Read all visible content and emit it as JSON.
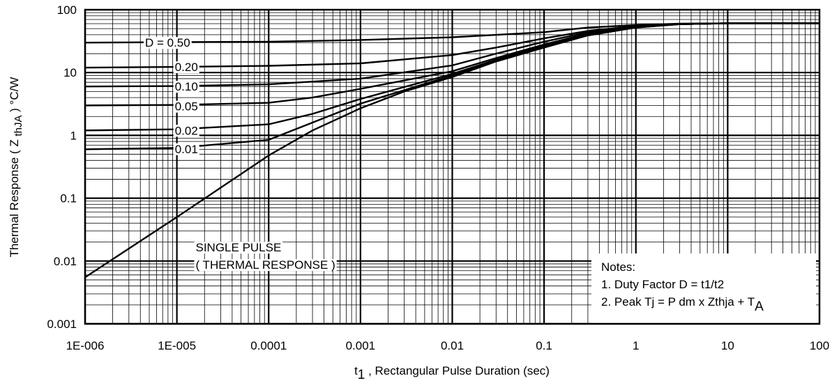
{
  "chart_data": {
    "type": "line",
    "xscale": "log",
    "yscale": "log",
    "xlim": [
      1e-06,
      100
    ],
    "ylim": [
      0.001,
      100
    ],
    "grid": true,
    "xlabel_main": "t",
    "xlabel_sub": "1",
    "xlabel_rest": " , Rectangular Pulse Duration (sec)",
    "ylabel_pre": "Thermal Response ( Z ",
    "ylabel_sub": "thJA",
    "ylabel_post": " ) °C/W",
    "x_ticks": [
      {
        "v": 1e-06,
        "label": "1E-006"
      },
      {
        "v": 1e-05,
        "label": "1E-005"
      },
      {
        "v": 0.0001,
        "label": "0.0001"
      },
      {
        "v": 0.001,
        "label": "0.001"
      },
      {
        "v": 0.01,
        "label": "0.01"
      },
      {
        "v": 0.1,
        "label": "0.1"
      },
      {
        "v": 1,
        "label": "1"
      },
      {
        "v": 10,
        "label": "10"
      },
      {
        "v": 100,
        "label": "100"
      }
    ],
    "y_ticks": [
      {
        "v": 0.001,
        "label": "0.001"
      },
      {
        "v": 0.01,
        "label": "0.01"
      },
      {
        "v": 0.1,
        "label": "0.1"
      },
      {
        "v": 1,
        "label": "1"
      },
      {
        "v": 10,
        "label": "10"
      },
      {
        "v": 100,
        "label": "100"
      }
    ],
    "series": [
      {
        "name": "D = 0.50",
        "label_x": 4.5e-06,
        "label_y": 30,
        "points": [
          [
            1e-06,
            30
          ],
          [
            1e-05,
            30.5
          ],
          [
            0.0001,
            31
          ],
          [
            0.001,
            33
          ],
          [
            0.01,
            36.5
          ],
          [
            0.1,
            44
          ],
          [
            0.3,
            52
          ],
          [
            1,
            57
          ],
          [
            3,
            60
          ],
          [
            10,
            61
          ],
          [
            100,
            61
          ]
        ]
      },
      {
        "name": "0.20",
        "label_x": 9.5e-06,
        "label_y": 12.3,
        "points": [
          [
            1e-06,
            12
          ],
          [
            1e-05,
            12.3
          ],
          [
            0.0001,
            12.8
          ],
          [
            0.001,
            14
          ],
          [
            0.01,
            19
          ],
          [
            0.03,
            25
          ],
          [
            0.1,
            35
          ],
          [
            0.3,
            46
          ],
          [
            1,
            55
          ],
          [
            3,
            59
          ],
          [
            10,
            61
          ],
          [
            100,
            61
          ]
        ]
      },
      {
        "name": "0.10",
        "label_x": 9.5e-06,
        "label_y": 6.0,
        "points": [
          [
            1e-06,
            6
          ],
          [
            1e-05,
            6.1
          ],
          [
            0.0001,
            6.5
          ],
          [
            0.001,
            8
          ],
          [
            0.01,
            13
          ],
          [
            0.03,
            20
          ],
          [
            0.1,
            31
          ],
          [
            0.3,
            44
          ],
          [
            1,
            54
          ],
          [
            3,
            59
          ],
          [
            10,
            61
          ],
          [
            100,
            61
          ]
        ]
      },
      {
        "name": "0.05",
        "label_x": 9.5e-06,
        "label_y": 2.9,
        "points": [
          [
            1e-06,
            3
          ],
          [
            1e-05,
            3.05
          ],
          [
            0.0001,
            3.3
          ],
          [
            0.0003,
            4
          ],
          [
            0.001,
            5.5
          ],
          [
            0.01,
            10.5
          ],
          [
            0.03,
            17
          ],
          [
            0.1,
            28
          ],
          [
            0.3,
            42
          ],
          [
            1,
            53
          ],
          [
            3,
            59
          ],
          [
            10,
            61
          ],
          [
            100,
            61
          ]
        ]
      },
      {
        "name": "0.02",
        "label_x": 9.5e-06,
        "label_y": 1.2,
        "points": [
          [
            1e-06,
            1.2
          ],
          [
            1e-05,
            1.25
          ],
          [
            0.0001,
            1.5
          ],
          [
            0.0003,
            2.2
          ],
          [
            0.001,
            3.8
          ],
          [
            0.01,
            9.5
          ],
          [
            0.03,
            16
          ],
          [
            0.1,
            27
          ],
          [
            0.3,
            41
          ],
          [
            1,
            53
          ],
          [
            3,
            59
          ],
          [
            10,
            61
          ],
          [
            100,
            61
          ]
        ]
      },
      {
        "name": "0.01",
        "label_x": 9.5e-06,
        "label_y": 0.61,
        "points": [
          [
            1e-06,
            0.6
          ],
          [
            1e-05,
            0.63
          ],
          [
            0.0001,
            0.85
          ],
          [
            0.0003,
            1.6
          ],
          [
            0.001,
            3.2
          ],
          [
            0.01,
            9
          ],
          [
            0.03,
            15.5
          ],
          [
            0.1,
            26
          ],
          [
            0.3,
            40
          ],
          [
            1,
            52
          ],
          [
            3,
            59
          ],
          [
            10,
            61
          ],
          [
            100,
            61
          ]
        ]
      },
      {
        "name": "SINGLE PULSE",
        "label_x": 1.6e-05,
        "label_y": 0.0165,
        "points": [
          [
            1e-06,
            0.0055
          ],
          [
            1e-05,
            0.05
          ],
          [
            0.0001,
            0.48
          ],
          [
            0.0003,
            1.2
          ],
          [
            0.001,
            2.7
          ],
          [
            0.003,
            5
          ],
          [
            0.01,
            8.5
          ],
          [
            0.03,
            15
          ],
          [
            0.1,
            25
          ],
          [
            0.3,
            39
          ],
          [
            1,
            52
          ],
          [
            3,
            59
          ],
          [
            10,
            61
          ],
          [
            100,
            61
          ]
        ]
      }
    ],
    "single_pulse_sublabel": "( THERMAL RESPONSE )",
    "notes": {
      "title": "Notes:",
      "line1": "1. Duty Factor D = t1/t2",
      "line2_main": "2. Peak Tj = P dm x Zthja + T",
      "line2_sub": "A"
    }
  }
}
